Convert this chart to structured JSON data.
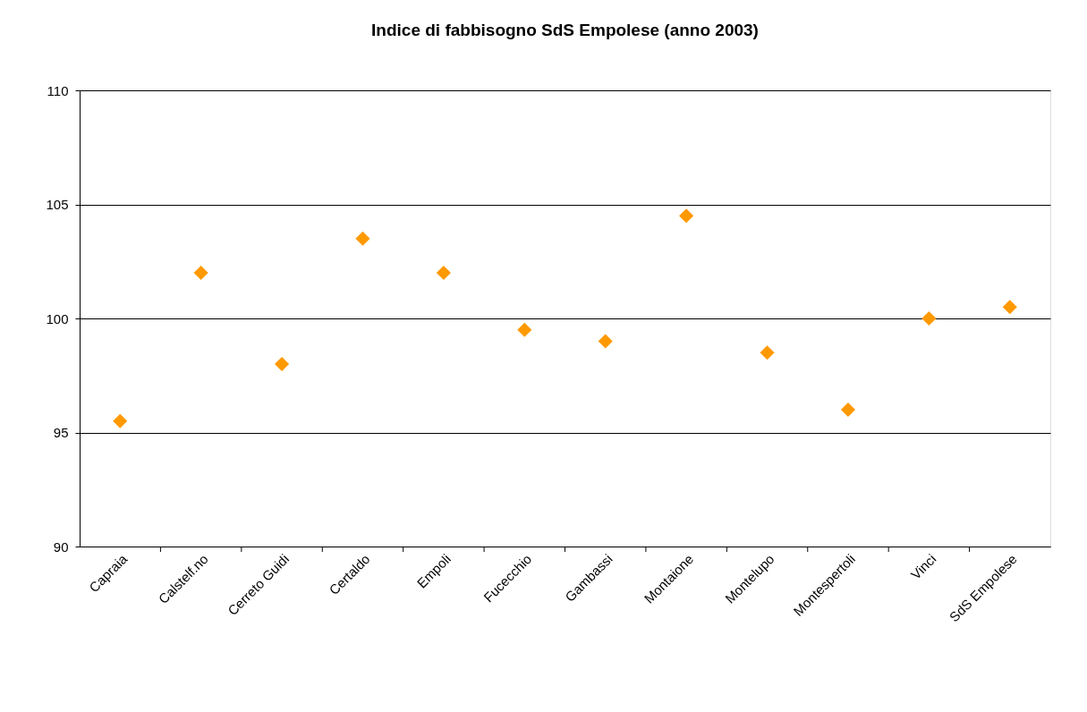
{
  "chart_data": {
    "type": "scatter",
    "title": "Indice di fabbisogno SdS Empolese (anno 2003)",
    "categories": [
      "Capraia",
      "Calstelf.no",
      "Cerreto Guidi",
      "Certaldo",
      "Empoli",
      "Fucecchio",
      "Gambassi",
      "Montaione",
      "Montelupo",
      "Montespertoli",
      "Vinci",
      "SdS Empolese"
    ],
    "series": [
      {
        "color": "#ff9900",
        "values": [
          95.5,
          102,
          98,
          103.5,
          102,
          99.5,
          99,
          104.5,
          98.5,
          96,
          100,
          100.5
        ]
      }
    ],
    "ylim": [
      90,
      110
    ],
    "yticks": [
      90,
      95,
      100,
      105,
      110
    ],
    "grid": "y",
    "marker": "diamond",
    "legend": false
  }
}
